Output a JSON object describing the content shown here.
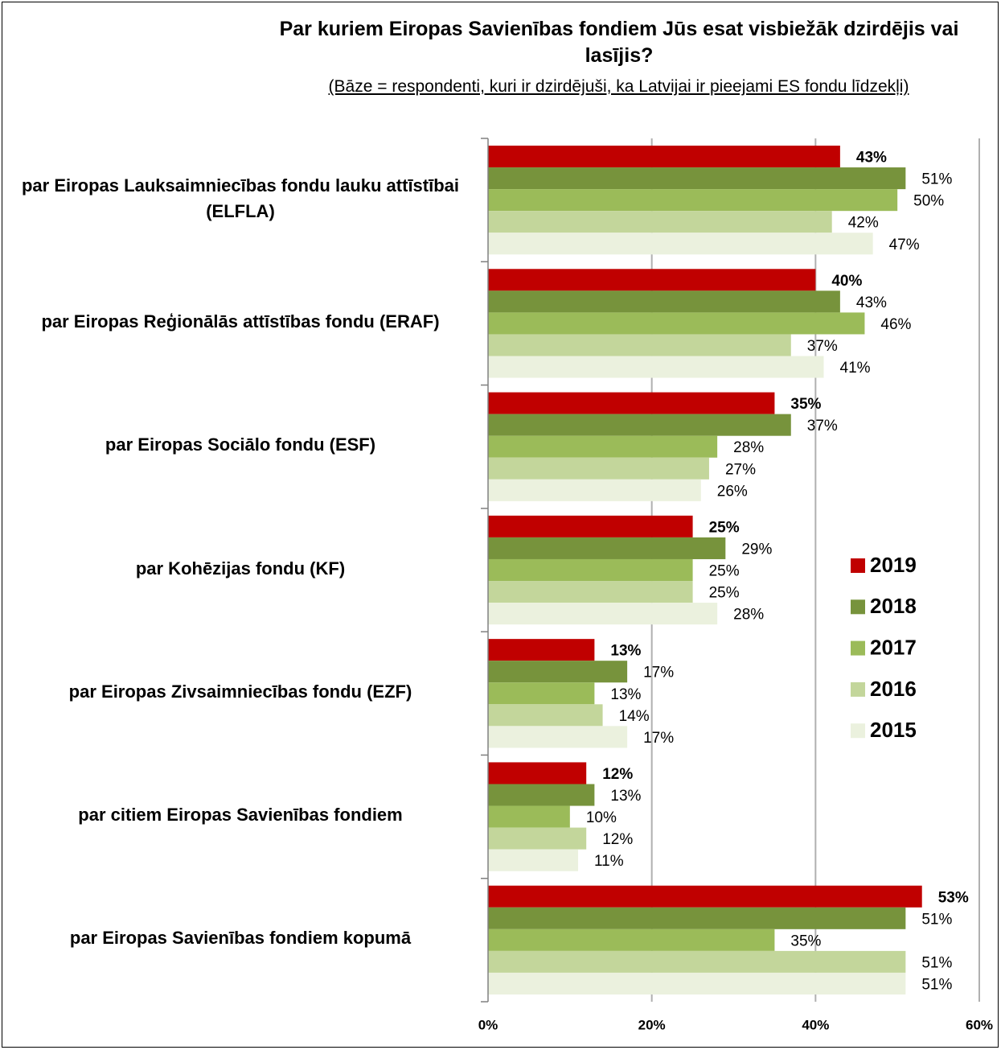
{
  "chart_data": {
    "type": "bar",
    "orientation": "horizontal",
    "title": "Par kuriem Eiropas Savienības fondiem Jūs esat visbiežāk dzirdējis vai lasījis?",
    "subtitle": "(Bāze = respondenti, kuri ir dzirdējuši, ka Latvijai ir pieejami ES fondu līdzekļi)",
    "categories": [
      "par Eiropas Lauksaimniecības fondu lauku attīstībai (ELFLA)",
      "par Eiropas Reģionālās attīstības fondu (ERAF)",
      "par Eiropas Sociālo fondu (ESF)",
      "par Kohēzijas fondu (KF)",
      "par Eiropas Zivsaimniecības fondu (EZF)",
      "par citiem  Eiropas Savienības fondiem",
      "par Eiropas Savienības fondiem kopumā"
    ],
    "series": [
      {
        "name": "2019",
        "color": "#c00000",
        "bold": true,
        "values": [
          43,
          40,
          35,
          25,
          13,
          12,
          53
        ],
        "value_labels": [
          "43%",
          "40%",
          "35%",
          "25%",
          "13%",
          "12%",
          "53%"
        ]
      },
      {
        "name": "2018",
        "color": "#77933c",
        "values": [
          51,
          43,
          37,
          29,
          17,
          13,
          51
        ],
        "value_labels": [
          "51%",
          "43%",
          "37%",
          "29%",
          "17%",
          "13%",
          "51%"
        ]
      },
      {
        "name": "2017",
        "color": "#9bbb59",
        "values": [
          50,
          46,
          28,
          25,
          13,
          10,
          35
        ],
        "value_labels": [
          "50%",
          "46%",
          "28%",
          "25%",
          "13%",
          "10%",
          "35%"
        ]
      },
      {
        "name": "2016",
        "color": "#c3d69b",
        "values": [
          42,
          37,
          27,
          25,
          14,
          12,
          51
        ],
        "value_labels": [
          "42%",
          "37%",
          "27%",
          "25%",
          "14%",
          "12%",
          "51%"
        ]
      },
      {
        "name": "2015",
        "color": "#ebf1de",
        "values": [
          47,
          41,
          26,
          28,
          17,
          11,
          51
        ],
        "value_labels": [
          "47%",
          "41%",
          "26%",
          "28%",
          "17%",
          "11%",
          "51%"
        ]
      }
    ],
    "xlim": [
      0,
      60
    ],
    "xticks": [
      {
        "value": 0,
        "label": "0%"
      },
      {
        "value": 20,
        "label": "20%"
      },
      {
        "value": 40,
        "label": "40%"
      },
      {
        "value": 60,
        "label": "60%"
      }
    ],
    "grid": true,
    "legend": "right"
  }
}
